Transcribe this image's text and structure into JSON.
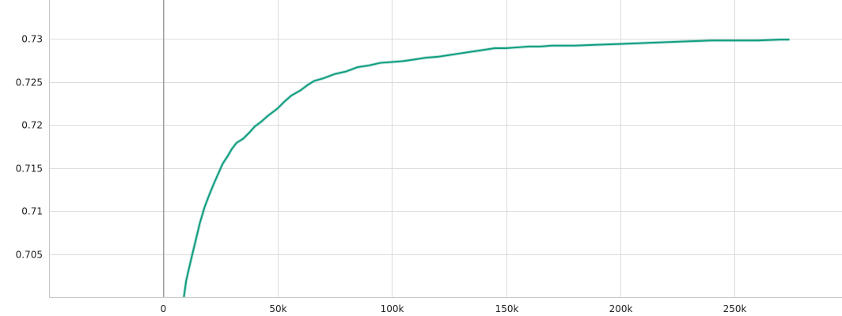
{
  "chart_data": {
    "type": "line",
    "title": "",
    "xlabel": "",
    "ylabel": "",
    "xlim": [
      -50000,
      297000
    ],
    "ylim": [
      0.7,
      0.7345
    ],
    "grid": true,
    "legend": "none",
    "x_ticks": [
      {
        "value": 0,
        "label": "0"
      },
      {
        "value": 50000,
        "label": "50k"
      },
      {
        "value": 100000,
        "label": "100k"
      },
      {
        "value": 150000,
        "label": "150k"
      },
      {
        "value": 200000,
        "label": "200k"
      },
      {
        "value": 250000,
        "label": "250k"
      }
    ],
    "y_ticks": [
      {
        "value": 0.705,
        "label": "0.705"
      },
      {
        "value": 0.71,
        "label": "0.71"
      },
      {
        "value": 0.715,
        "label": "0.715"
      },
      {
        "value": 0.72,
        "label": "0.72"
      },
      {
        "value": 0.725,
        "label": "0.725"
      },
      {
        "value": 0.73,
        "label": "0.73"
      }
    ],
    "series": [
      {
        "color": "#0f9d80",
        "x": [
          9000,
          10000,
          12000,
          14000,
          16000,
          18000,
          20000,
          22000,
          24000,
          26000,
          28000,
          30000,
          32000,
          35000,
          38000,
          40000,
          43000,
          46000,
          50000,
          53000,
          56000,
          60000,
          63000,
          66000,
          70000,
          75000,
          80000,
          85000,
          90000,
          95000,
          100000,
          105000,
          110000,
          115000,
          120000,
          125000,
          130000,
          135000,
          140000,
          145000,
          150000,
          155000,
          160000,
          165000,
          170000,
          180000,
          190000,
          200000,
          210000,
          220000,
          230000,
          240000,
          250000,
          260000,
          270000,
          274000
        ],
        "y": [
          0.7,
          0.7019,
          0.7042,
          0.7064,
          0.7086,
          0.7104,
          0.7118,
          0.7131,
          0.7143,
          0.7155,
          0.7163,
          0.7172,
          0.7179,
          0.7184,
          0.7192,
          0.7198,
          0.7204,
          0.7211,
          0.7219,
          0.7227,
          0.7234,
          0.724,
          0.7246,
          0.7251,
          0.7254,
          0.7259,
          0.7262,
          0.7267,
          0.7269,
          0.7272,
          0.7273,
          0.7274,
          0.7276,
          0.7278,
          0.7279,
          0.7281,
          0.7283,
          0.7285,
          0.7287,
          0.7289,
          0.7289,
          0.729,
          0.7291,
          0.7291,
          0.7292,
          0.7292,
          0.7293,
          0.7294,
          0.7295,
          0.7296,
          0.7297,
          0.7298,
          0.7298,
          0.7298,
          0.7299,
          0.7299
        ]
      }
    ]
  }
}
